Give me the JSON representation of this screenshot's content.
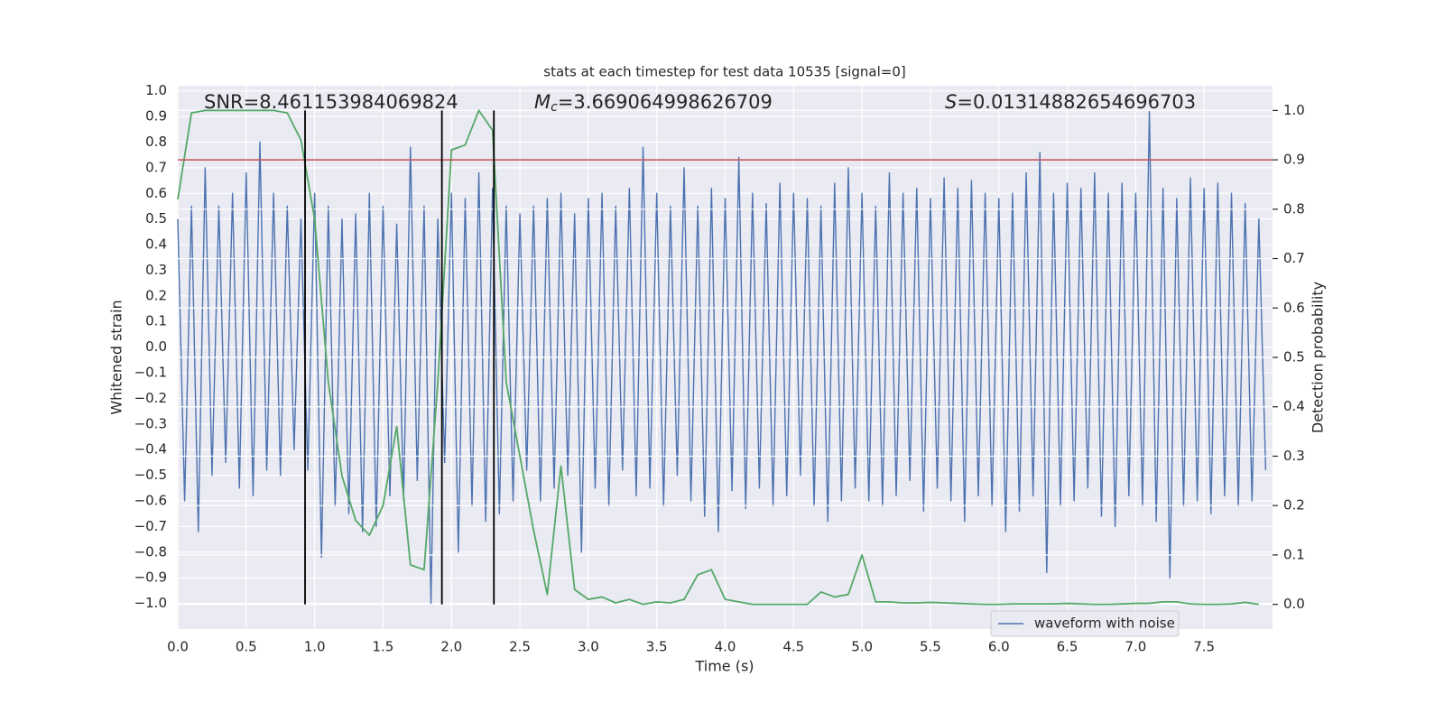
{
  "chart_data": {
    "type": "line",
    "title": "stats at each timestep for test data 10535 [signal=0]",
    "xlabel": "Time (s)",
    "ylabel": "Whitened strain",
    "y2label": "Detection probability",
    "grid": true,
    "legend": "lower right",
    "xlim": [
      0,
      8
    ],
    "ylim": [
      -1.1,
      1.02
    ],
    "y2lim": [
      -0.05,
      1.05
    ],
    "xticks": [
      {
        "value": 0,
        "label": "0.0"
      },
      0.5,
      {
        "value": 1,
        "label": "1.0"
      },
      1.5,
      {
        "value": 2,
        "label": "2.0"
      },
      2.5,
      {
        "value": 3,
        "label": "3.0"
      },
      3.5,
      {
        "value": 4,
        "label": "4.0"
      },
      4.5,
      {
        "value": 5,
        "label": "5.0"
      },
      5.5,
      {
        "value": 6,
        "label": "6.0"
      },
      6.5,
      {
        "value": 7,
        "label": "7.0"
      },
      7.5
    ],
    "yticks": [
      {
        "value": -1,
        "label": "−1.0"
      },
      {
        "value": -0.9,
        "label": "−0.9"
      },
      {
        "value": -0.8,
        "label": "−0.8"
      },
      {
        "value": -0.7,
        "label": "−0.7"
      },
      {
        "value": -0.6,
        "label": "−0.6"
      },
      {
        "value": -0.5,
        "label": "−0.5"
      },
      {
        "value": -0.4,
        "label": "−0.4"
      },
      {
        "value": -0.3,
        "label": "−0.3"
      },
      {
        "value": -0.2,
        "label": "−0.2"
      },
      {
        "value": -0.1,
        "label": "−0.1"
      },
      {
        "value": 0,
        "label": "0.0"
      },
      0.1,
      0.2,
      0.3,
      0.4,
      0.5,
      0.6,
      0.7,
      0.8,
      0.9,
      {
        "value": 1,
        "label": "1.0"
      }
    ],
    "y2ticks": [
      {
        "value": 0,
        "label": "0.0"
      },
      0.1,
      0.2,
      0.3,
      0.4,
      0.5,
      0.6,
      0.7,
      0.8,
      0.9,
      {
        "value": 1,
        "label": "1.0"
      }
    ],
    "threshold": {
      "value": 0.9,
      "color": "#c44e52",
      "axis": "y2"
    },
    "vlines": {
      "x": [
        0.93,
        1.93,
        2.31
      ],
      "ymin": 0,
      "ymax": 1,
      "color": "#000000",
      "axis": "y2"
    },
    "annotations": [
      {
        "text": "SNR=8.461153984069824"
      },
      {
        "symbol": "M",
        "subscript": "c",
        "text": "=3.669064998626709"
      },
      {
        "symbol": "S",
        "text": "=0.01314882654696703"
      }
    ],
    "series": [
      {
        "name": "waveform with noise",
        "color": "#4c72b0",
        "x": [
          0,
          0.05,
          0.1,
          0.15,
          0.2,
          0.25,
          0.3,
          0.35,
          0.4,
          0.45,
          0.5,
          0.55,
          0.6,
          0.65,
          0.7,
          0.75,
          0.8,
          0.85,
          0.9,
          0.95,
          1,
          1.05,
          1.1,
          1.15,
          1.2,
          1.25,
          1.3,
          1.35,
          1.4,
          1.45,
          1.5,
          1.55,
          1.6,
          1.65,
          1.7,
          1.75,
          1.8,
          1.85,
          1.9,
          1.95,
          2,
          2.05,
          2.1,
          2.15,
          2.2,
          2.25,
          2.3,
          2.35,
          2.4,
          2.45,
          2.5,
          2.55,
          2.6,
          2.65,
          2.7,
          2.75,
          2.8,
          2.85,
          2.9,
          2.95,
          3,
          3.05,
          3.1,
          3.15,
          3.2,
          3.25,
          3.3,
          3.35,
          3.4,
          3.45,
          3.5,
          3.55,
          3.6,
          3.65,
          3.7,
          3.75,
          3.8,
          3.85,
          3.9,
          3.95,
          4,
          4.05,
          4.1,
          4.15,
          4.2,
          4.25,
          4.3,
          4.35,
          4.4,
          4.45,
          4.5,
          4.55,
          4.6,
          4.65,
          4.7,
          4.75,
          4.8,
          4.85,
          4.9,
          4.95,
          5,
          5.05,
          5.1,
          5.15,
          5.2,
          5.25,
          5.3,
          5.35,
          5.4,
          5.45,
          5.5,
          5.55,
          5.6,
          5.65,
          5.7,
          5.75,
          5.8,
          5.85,
          5.9,
          5.95,
          6,
          6.05,
          6.1,
          6.15,
          6.2,
          6.25,
          6.3,
          6.35,
          6.4,
          6.45,
          6.5,
          6.55,
          6.6,
          6.65,
          6.7,
          6.75,
          6.8,
          6.85,
          6.9,
          6.95,
          7,
          7.05,
          7.1,
          7.15,
          7.2,
          7.25,
          7.3,
          7.35,
          7.4,
          7.45,
          7.5,
          7.55,
          7.6,
          7.65,
          7.7,
          7.75,
          7.8,
          7.85,
          7.9,
          7.95
        ],
        "values": [
          0.5,
          -0.6,
          0.55,
          -0.72,
          0.7,
          -0.5,
          0.55,
          -0.45,
          0.6,
          -0.55,
          0.68,
          -0.58,
          0.8,
          -0.48,
          0.6,
          -0.5,
          0.55,
          -0.4,
          0.5,
          -0.48,
          0.6,
          -0.82,
          0.55,
          -0.62,
          0.5,
          -0.65,
          0.52,
          -0.72,
          0.6,
          -0.7,
          0.55,
          -0.58,
          0.48,
          -0.6,
          0.78,
          -0.52,
          0.55,
          -1.0,
          0.5,
          -0.45,
          0.6,
          -0.8,
          0.58,
          -0.62,
          0.68,
          -0.68,
          0.62,
          -0.65,
          0.55,
          -0.6,
          0.52,
          -0.48,
          0.55,
          -0.6,
          0.58,
          -0.55,
          0.6,
          -0.5,
          0.52,
          -0.8,
          0.58,
          -0.55,
          0.6,
          -0.62,
          0.55,
          -0.48,
          0.62,
          -0.58,
          0.78,
          -0.55,
          0.6,
          -0.62,
          0.55,
          -0.5,
          0.7,
          -0.6,
          0.55,
          -0.66,
          0.62,
          -0.72,
          0.58,
          -0.56,
          0.74,
          -0.63,
          0.6,
          -0.55,
          0.56,
          -0.62,
          0.64,
          -0.58,
          0.6,
          -0.5,
          0.58,
          -0.62,
          0.55,
          -0.68,
          0.64,
          -0.6,
          0.7,
          -0.55,
          0.6,
          -0.6,
          0.55,
          -0.62,
          0.68,
          -0.58,
          0.6,
          -0.52,
          0.62,
          -0.64,
          0.58,
          -0.55,
          0.66,
          -0.6,
          0.62,
          -0.68,
          0.65,
          -0.58,
          0.6,
          -0.62,
          0.58,
          -0.72,
          0.6,
          -0.64,
          0.68,
          -0.58,
          0.76,
          -0.88,
          0.6,
          -0.62,
          0.64,
          -0.6,
          0.62,
          -0.55,
          0.68,
          -0.66,
          0.6,
          -0.7,
          0.64,
          -0.58,
          0.6,
          -0.62,
          0.92,
          -0.68,
          0.62,
          -0.9,
          0.58,
          -0.62,
          0.66,
          -0.6,
          0.62,
          -0.65,
          0.64,
          -0.58,
          0.6,
          -0.62,
          0.56,
          -0.6,
          0.5,
          -0.48
        ]
      },
      {
        "color": "#55a868",
        "axis": "y2",
        "x": [
          0,
          0.1,
          0.2,
          0.3,
          0.4,
          0.5,
          0.6,
          0.7,
          0.8,
          0.9,
          1,
          1.1,
          1.2,
          1.3,
          1.4,
          1.5,
          1.6,
          1.7,
          1.8,
          1.9,
          2,
          2.1,
          2.2,
          2.3,
          2.4,
          2.5,
          2.6,
          2.7,
          2.8,
          2.9,
          3,
          3.1,
          3.2,
          3.3,
          3.4,
          3.5,
          3.6,
          3.7,
          3.8,
          3.9,
          4,
          4.1,
          4.2,
          4.3,
          4.4,
          4.5,
          4.6,
          4.7,
          4.8,
          4.9,
          5,
          5.1,
          5.2,
          5.3,
          5.4,
          5.5,
          5.6,
          5.7,
          5.8,
          5.9,
          6,
          6.1,
          6.2,
          6.3,
          6.4,
          6.5,
          6.6,
          6.7,
          6.8,
          6.9,
          7,
          7.1,
          7.2,
          7.3,
          7.4,
          7.5,
          7.6,
          7.7,
          7.8,
          7.9
        ],
        "values": [
          0.82,
          0.995,
          1.0,
          1.0,
          1.0,
          1.0,
          1.0,
          1.0,
          0.995,
          0.94,
          0.78,
          0.45,
          0.26,
          0.17,
          0.14,
          0.2,
          0.36,
          0.08,
          0.07,
          0.45,
          0.92,
          0.93,
          1.0,
          0.96,
          0.45,
          0.3,
          0.15,
          0.02,
          0.28,
          0.03,
          0.01,
          0.015,
          0.003,
          0.01,
          0.0,
          0.005,
          0.003,
          0.01,
          0.06,
          0.07,
          0.01,
          0.005,
          0.0,
          0.0,
          0.0,
          0.0,
          0.0,
          0.025,
          0.015,
          0.02,
          0.1,
          0.005,
          0.005,
          0.003,
          0.003,
          0.004,
          0.003,
          0.002,
          0.001,
          0.0,
          0.0,
          0.001,
          0.001,
          0.001,
          0.001,
          0.002,
          0.001,
          0.0,
          0.0,
          0.001,
          0.002,
          0.002,
          0.005,
          0.005,
          0.001,
          0.0,
          0.0,
          0.001,
          0.004,
          0.0
        ]
      }
    ]
  }
}
